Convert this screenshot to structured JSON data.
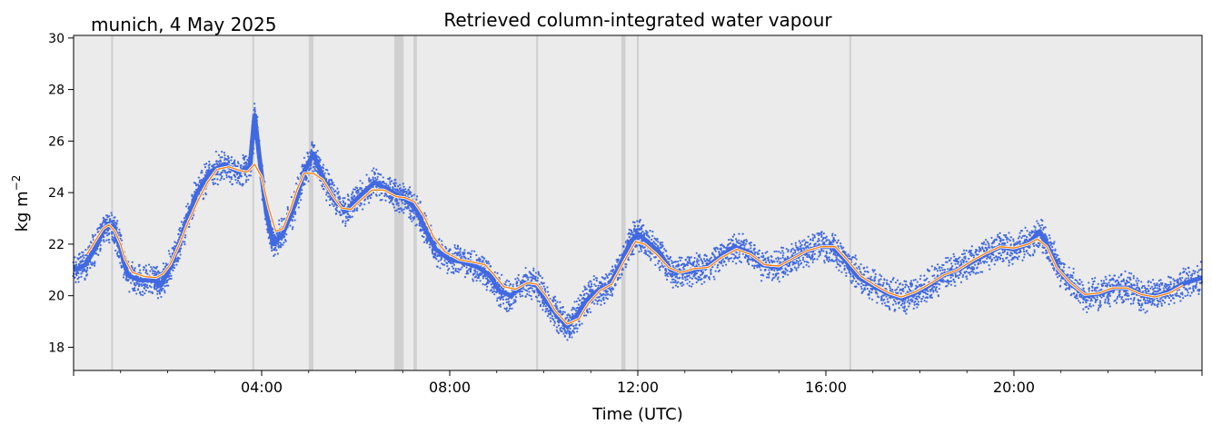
{
  "chart_data": {
    "type": "line",
    "title": "Retrieved column-integrated water vapour",
    "location_date": "munich, 4 May 2025",
    "xlabel": "Time (UTC)",
    "ylabel": "kg m",
    "ylabel_superscript": "−2",
    "x_unit": "hours UTC",
    "xlim": [
      0,
      24
    ],
    "ylim": [
      17.1,
      30.1
    ],
    "x_ticks": [
      {
        "value": 4,
        "label": "04:00"
      },
      {
        "value": 8,
        "label": "08:00"
      },
      {
        "value": 12,
        "label": "12:00"
      },
      {
        "value": 16,
        "label": "16:00"
      },
      {
        "value": 20,
        "label": "20:00"
      }
    ],
    "y_ticks": [
      {
        "value": 18,
        "label": "18"
      },
      {
        "value": 20,
        "label": "20"
      },
      {
        "value": 22,
        "label": "22"
      },
      {
        "value": 24,
        "label": "24"
      },
      {
        "value": 26,
        "label": "26"
      },
      {
        "value": 28,
        "label": "28"
      },
      {
        "value": 30,
        "label": "30"
      }
    ],
    "background_color": "#ebebeb",
    "gap_bands_hours": [
      [
        0.8,
        0.84
      ],
      [
        3.8,
        3.84
      ],
      [
        5.0,
        5.1
      ],
      [
        6.82,
        7.02
      ],
      [
        7.23,
        7.3
      ],
      [
        9.84,
        9.88
      ],
      [
        11.65,
        11.74
      ],
      [
        11.98,
        12.02
      ],
      [
        16.5,
        16.54
      ]
    ],
    "gap_band_color": "#d0d0d0",
    "series": [
      {
        "color": "#4169e1",
        "style": "scatter-dots",
        "points": [
          [
            0.0,
            21.0
          ],
          [
            0.25,
            21.2
          ],
          [
            0.45,
            21.8
          ],
          [
            0.65,
            22.6
          ],
          [
            0.85,
            22.7
          ],
          [
            1.0,
            21.8
          ],
          [
            1.15,
            20.8
          ],
          [
            1.4,
            20.6
          ],
          [
            1.7,
            20.6
          ],
          [
            1.85,
            20.4
          ],
          [
            2.0,
            20.9
          ],
          [
            2.2,
            21.8
          ],
          [
            2.4,
            22.8
          ],
          [
            2.6,
            23.9
          ],
          [
            2.9,
            24.8
          ],
          [
            3.2,
            25.1
          ],
          [
            3.5,
            24.8
          ],
          [
            3.75,
            25.0
          ],
          [
            3.85,
            27.0
          ],
          [
            3.95,
            25.4
          ],
          [
            4.1,
            23.2
          ],
          [
            4.25,
            22.0
          ],
          [
            4.45,
            22.4
          ],
          [
            4.7,
            23.5
          ],
          [
            4.9,
            24.8
          ],
          [
            5.1,
            25.5
          ],
          [
            5.3,
            24.6
          ],
          [
            5.55,
            23.7
          ],
          [
            5.8,
            23.3
          ],
          [
            6.05,
            23.8
          ],
          [
            6.4,
            24.4
          ],
          [
            6.7,
            24.1
          ],
          [
            6.9,
            23.9
          ],
          [
            7.1,
            23.7
          ],
          [
            7.3,
            23.3
          ],
          [
            7.5,
            22.5
          ],
          [
            7.7,
            21.8
          ],
          [
            8.0,
            21.4
          ],
          [
            8.3,
            21.3
          ],
          [
            8.6,
            21.1
          ],
          [
            8.85,
            20.8
          ],
          [
            9.05,
            20.2
          ],
          [
            9.3,
            20.0
          ],
          [
            9.6,
            20.5
          ],
          [
            9.85,
            20.4
          ],
          [
            10.05,
            19.8
          ],
          [
            10.3,
            19.2
          ],
          [
            10.5,
            18.8
          ],
          [
            10.7,
            19.2
          ],
          [
            10.9,
            19.8
          ],
          [
            11.15,
            20.2
          ],
          [
            11.4,
            20.4
          ],
          [
            11.65,
            21.3
          ],
          [
            11.85,
            22.1
          ],
          [
            12.0,
            22.4
          ],
          [
            12.2,
            22.1
          ],
          [
            12.45,
            21.7
          ],
          [
            12.7,
            21.0
          ],
          [
            12.95,
            20.9
          ],
          [
            13.2,
            21.0
          ],
          [
            13.45,
            21.1
          ],
          [
            13.75,
            21.5
          ],
          [
            14.05,
            21.9
          ],
          [
            14.35,
            21.7
          ],
          [
            14.65,
            21.2
          ],
          [
            14.95,
            21.1
          ],
          [
            15.25,
            21.4
          ],
          [
            15.55,
            21.7
          ],
          [
            15.85,
            21.9
          ],
          [
            16.15,
            21.9
          ],
          [
            16.4,
            21.4
          ],
          [
            16.7,
            20.7
          ],
          [
            17.0,
            20.4
          ],
          [
            17.3,
            20.1
          ],
          [
            17.6,
            19.9
          ],
          [
            17.9,
            20.1
          ],
          [
            18.2,
            20.4
          ],
          [
            18.5,
            20.8
          ],
          [
            18.8,
            21.0
          ],
          [
            19.1,
            21.3
          ],
          [
            19.4,
            21.6
          ],
          [
            19.7,
            21.9
          ],
          [
            20.0,
            21.8
          ],
          [
            20.3,
            22.0
          ],
          [
            20.55,
            22.5
          ],
          [
            20.75,
            21.8
          ],
          [
            20.95,
            21.0
          ],
          [
            21.25,
            20.4
          ],
          [
            21.55,
            20.0
          ],
          [
            21.85,
            20.1
          ],
          [
            22.15,
            20.3
          ],
          [
            22.45,
            20.3
          ],
          [
            22.75,
            20.0
          ],
          [
            23.05,
            20.0
          ],
          [
            23.35,
            20.2
          ],
          [
            23.65,
            20.5
          ],
          [
            24.0,
            20.7
          ]
        ]
      },
      {
        "color": "#ff7f0e",
        "style": "smoothed-line",
        "points": [
          [
            0.28,
            21.6
          ],
          [
            0.45,
            22.1
          ],
          [
            0.62,
            22.6
          ],
          [
            0.75,
            22.75
          ],
          [
            0.88,
            22.5
          ],
          [
            1.0,
            22.0
          ],
          [
            1.1,
            21.4
          ],
          [
            1.25,
            20.9
          ],
          [
            1.5,
            20.75
          ],
          [
            1.75,
            20.7
          ],
          [
            1.9,
            20.85
          ],
          [
            2.05,
            21.2
          ],
          [
            2.25,
            22.0
          ],
          [
            2.45,
            22.9
          ],
          [
            2.65,
            23.7
          ],
          [
            2.85,
            24.4
          ],
          [
            3.05,
            24.9
          ],
          [
            3.3,
            25.0
          ],
          [
            3.55,
            24.85
          ],
          [
            3.7,
            24.8
          ],
          [
            3.85,
            25.1
          ],
          [
            4.0,
            24.6
          ],
          [
            4.15,
            23.4
          ],
          [
            4.3,
            22.5
          ],
          [
            4.45,
            22.6
          ],
          [
            4.6,
            23.3
          ],
          [
            4.75,
            24.1
          ],
          [
            4.9,
            24.75
          ],
          [
            5.1,
            24.75
          ],
          [
            5.3,
            24.5
          ],
          [
            5.5,
            23.9
          ],
          [
            5.7,
            23.4
          ],
          [
            5.9,
            23.35
          ],
          [
            6.1,
            23.7
          ],
          [
            6.35,
            24.1
          ],
          [
            6.6,
            24.1
          ],
          [
            6.85,
            23.85
          ],
          [
            7.05,
            23.8
          ],
          [
            7.25,
            23.65
          ],
          [
            7.45,
            23.1
          ],
          [
            7.65,
            22.3
          ],
          [
            7.9,
            21.7
          ],
          [
            8.2,
            21.4
          ],
          [
            8.5,
            21.3
          ],
          [
            8.75,
            21.2
          ],
          [
            8.95,
            20.8
          ],
          [
            9.15,
            20.35
          ],
          [
            9.4,
            20.25
          ],
          [
            9.65,
            20.5
          ],
          [
            9.85,
            20.45
          ],
          [
            10.05,
            20.0
          ],
          [
            10.25,
            19.4
          ],
          [
            10.5,
            18.9
          ],
          [
            10.75,
            19.1
          ],
          [
            10.95,
            19.7
          ],
          [
            11.2,
            20.2
          ],
          [
            11.45,
            20.45
          ],
          [
            11.7,
            21.3
          ],
          [
            11.95,
            22.1
          ],
          [
            12.15,
            22.0
          ],
          [
            12.4,
            21.6
          ],
          [
            12.65,
            21.1
          ],
          [
            12.9,
            20.9
          ],
          [
            13.2,
            21.05
          ],
          [
            13.5,
            21.1
          ],
          [
            13.8,
            21.5
          ],
          [
            14.1,
            21.8
          ],
          [
            14.4,
            21.6
          ],
          [
            14.7,
            21.2
          ],
          [
            15.0,
            21.15
          ],
          [
            15.3,
            21.45
          ],
          [
            15.6,
            21.75
          ],
          [
            15.9,
            21.9
          ],
          [
            16.2,
            21.9
          ],
          [
            16.45,
            21.4
          ],
          [
            16.75,
            20.75
          ],
          [
            17.05,
            20.4
          ],
          [
            17.35,
            20.1
          ],
          [
            17.6,
            19.95
          ],
          [
            17.9,
            20.15
          ],
          [
            18.2,
            20.45
          ],
          [
            18.5,
            20.8
          ],
          [
            18.8,
            21.0
          ],
          [
            19.1,
            21.35
          ],
          [
            19.4,
            21.65
          ],
          [
            19.7,
            21.9
          ],
          [
            20.0,
            21.85
          ],
          [
            20.3,
            22.0
          ],
          [
            20.5,
            22.2
          ],
          [
            20.7,
            21.9
          ],
          [
            20.9,
            21.1
          ],
          [
            21.2,
            20.5
          ],
          [
            21.5,
            20.05
          ],
          [
            21.8,
            20.1
          ],
          [
            22.1,
            20.3
          ],
          [
            22.4,
            20.3
          ],
          [
            22.7,
            20.05
          ],
          [
            23.0,
            19.95
          ],
          [
            23.3,
            20.1
          ],
          [
            23.6,
            20.4
          ]
        ]
      }
    ]
  }
}
